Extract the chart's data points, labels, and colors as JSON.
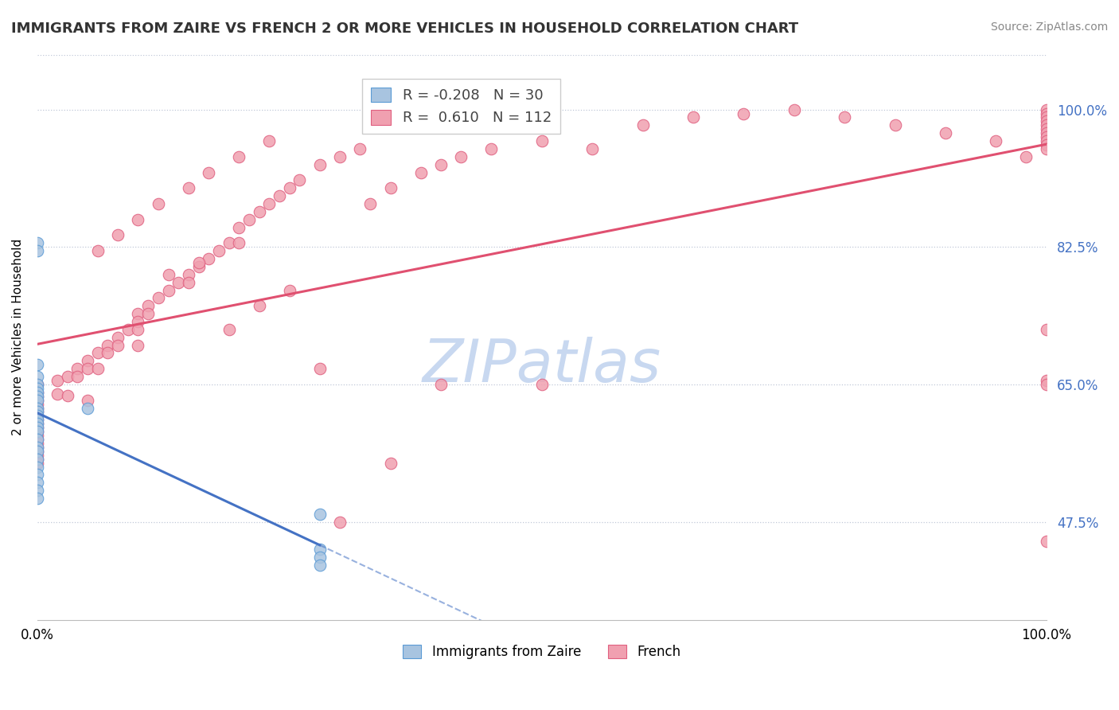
{
  "title": "IMMIGRANTS FROM ZAIRE VS FRENCH 2 OR MORE VEHICLES IN HOUSEHOLD CORRELATION CHART",
  "source": "Source: ZipAtlas.com",
  "ylabel": "2 or more Vehicles in Household",
  "legend_label1": "Immigrants from Zaire",
  "legend_label2": "French",
  "R1": -0.208,
  "N1": 30,
  "R2": 0.61,
  "N2": 112,
  "color_blue": "#a8c4e0",
  "color_pink": "#f0a0b0",
  "color_blue_dark": "#5b9bd5",
  "color_pink_dark": "#e06080",
  "color_trend_blue": "#4472c4",
  "color_trend_pink": "#e05070",
  "background_color": "#ffffff",
  "grid_color": "#c0c8d8",
  "watermark_color": "#c8d8f0",
  "y_tick_values": [
    47.5,
    65.0,
    82.5,
    100.0
  ],
  "ylim": [
    35.0,
    107.0
  ],
  "figsize": [
    14.06,
    8.92
  ],
  "dpi": 100,
  "blue_x": [
    0.0,
    0.0,
    0.0,
    0.0,
    0.0,
    0.0,
    0.0,
    0.0,
    0.0,
    0.0,
    0.0,
    0.0,
    0.0,
    0.0,
    0.0,
    0.0,
    0.0,
    0.0,
    0.0,
    0.0,
    0.0,
    0.0,
    0.0,
    0.0,
    0.0,
    0.05,
    0.28,
    0.28,
    0.28,
    0.28
  ],
  "blue_y": [
    83.0,
    82.0,
    67.5,
    66.0,
    65.0,
    64.5,
    64.0,
    63.5,
    63.0,
    62.0,
    61.5,
    61.0,
    60.5,
    60.0,
    59.5,
    59.0,
    58.0,
    57.0,
    56.5,
    55.5,
    54.5,
    53.5,
    52.5,
    51.5,
    50.5,
    62.0,
    44.0,
    43.0,
    42.0,
    48.5
  ],
  "pink_x": [
    0.0,
    0.0,
    0.0,
    0.0,
    0.0,
    0.0,
    0.0,
    0.0,
    0.0,
    0.0,
    0.0,
    0.0,
    0.0,
    0.0,
    0.0,
    0.0,
    0.0,
    0.0,
    0.0,
    0.0,
    0.02,
    0.02,
    0.03,
    0.03,
    0.04,
    0.04,
    0.05,
    0.05,
    0.05,
    0.06,
    0.06,
    0.07,
    0.07,
    0.08,
    0.08,
    0.09,
    0.1,
    0.1,
    0.1,
    0.1,
    0.11,
    0.11,
    0.12,
    0.13,
    0.14,
    0.15,
    0.15,
    0.16,
    0.17,
    0.18,
    0.19,
    0.2,
    0.2,
    0.21,
    0.22,
    0.23,
    0.24,
    0.25,
    0.26,
    0.28,
    0.3,
    0.32,
    0.33,
    0.35,
    0.38,
    0.4,
    0.42,
    0.45,
    0.5,
    0.55,
    0.6,
    0.65,
    0.7,
    0.75,
    0.8,
    0.85,
    0.9,
    0.95,
    0.98,
    1.0,
    1.0,
    1.0,
    1.0,
    1.0,
    1.0,
    1.0,
    1.0,
    1.0,
    1.0,
    1.0,
    1.0,
    1.0,
    1.0,
    1.0,
    0.3,
    0.35,
    0.4,
    0.5,
    0.28,
    0.19,
    0.22,
    0.25,
    0.13,
    0.16,
    0.06,
    0.08,
    0.1,
    0.12,
    0.15,
    0.17,
    0.2,
    0.23
  ],
  "pink_y": [
    65.0,
    64.0,
    63.5,
    63.0,
    62.5,
    62.0,
    61.5,
    61.0,
    60.5,
    60.0,
    59.5,
    59.0,
    58.5,
    58.0,
    57.5,
    57.0,
    56.5,
    56.0,
    55.5,
    55.0,
    65.5,
    63.8,
    66.0,
    63.6,
    67.0,
    66.0,
    68.0,
    67.0,
    63.0,
    69.0,
    67.0,
    70.0,
    69.0,
    71.0,
    70.0,
    72.0,
    74.0,
    73.0,
    72.0,
    70.0,
    75.0,
    74.0,
    76.0,
    77.0,
    78.0,
    79.0,
    78.0,
    80.0,
    81.0,
    82.0,
    83.0,
    85.0,
    83.0,
    86.0,
    87.0,
    88.0,
    89.0,
    90.0,
    91.0,
    93.0,
    94.0,
    95.0,
    88.0,
    90.0,
    92.0,
    93.0,
    94.0,
    95.0,
    96.0,
    95.0,
    98.0,
    99.0,
    99.5,
    100.0,
    99.0,
    98.0,
    97.0,
    96.0,
    94.0,
    100.0,
    99.5,
    99.0,
    98.5,
    98.0,
    97.5,
    97.0,
    96.5,
    96.0,
    95.5,
    95.0,
    45.0,
    65.5,
    65.0,
    72.0,
    47.5,
    55.0,
    65.0,
    65.0,
    67.0,
    72.0,
    75.0,
    77.0,
    79.0,
    80.5,
    82.0,
    84.0,
    86.0,
    88.0,
    90.0,
    92.0,
    94.0,
    96.0
  ]
}
